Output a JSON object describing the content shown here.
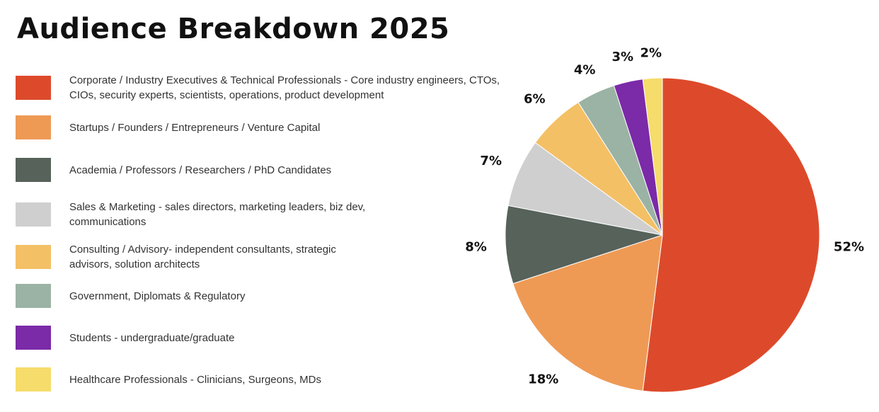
{
  "chart_data": {
    "type": "pie",
    "title": "Audience Breakdown 2025",
    "start": "top, clockwise",
    "slices": [
      {
        "label": "Corporate / Industry Executives & Technical Professionals - Core industry engineers, CTOs, CIOs, security experts, scientists, operations, product development",
        "value": 52,
        "display": "52%",
        "color": "#DD4A2B"
      },
      {
        "label": "Startups / Founders / Entrepreneurs / Venture Capital",
        "value": 18,
        "display": "18%",
        "color": "#EE9A55"
      },
      {
        "label": "Academia / Professors / Researchers / PhD Candidates",
        "value": 8,
        "display": "8%",
        "color": "#56625A"
      },
      {
        "label": "Sales & Marketing - sales directors, marketing leaders, biz dev, communications",
        "value": 7,
        "display": "7%",
        "color": "#CFCFCF"
      },
      {
        "label": "Consulting / Advisory- independent consultants, strategic advisors, solution architects",
        "value": 6,
        "display": "6%",
        "color": "#F4C065"
      },
      {
        "label": "Government, Diplomats & Regulatory",
        "value": 4,
        "display": "4%",
        "color": "#9BB3A4"
      },
      {
        "label": "Students - undergraduate/graduate",
        "value": 3,
        "display": "3%",
        "color": "#7B2AA8"
      },
      {
        "label": "Healthcare Professionals - Clinicians, Surgeons, MDs",
        "value": 2,
        "display": "2%",
        "color": "#F6DC6A"
      }
    ],
    "legend": "left"
  }
}
